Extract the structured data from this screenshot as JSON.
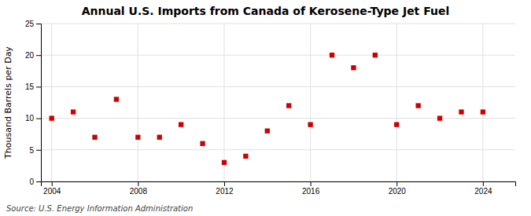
{
  "chart_data": {
    "type": "scatter",
    "title": "Annual U.S. Imports from Canada of Kerosene-Type Jet Fuel",
    "ylabel": "Thousand Barrels per Day",
    "source": "Source: U.S. Energy Information Administration",
    "x": [
      2004,
      2005,
      2006,
      2007,
      2008,
      2009,
      2010,
      2011,
      2012,
      2013,
      2014,
      2015,
      2016,
      2017,
      2018,
      2019,
      2020,
      2021,
      2022,
      2023,
      2024
    ],
    "values": [
      10,
      11,
      7,
      13,
      7,
      7,
      9,
      6,
      3,
      4,
      8,
      12,
      9,
      20,
      18,
      20,
      9,
      12,
      10,
      11,
      11
    ],
    "color": "#cc0000",
    "marker": "square",
    "xlim": [
      2003.5,
      2025.5
    ],
    "ylim": [
      0,
      25
    ],
    "xticks": [
      2004,
      2008,
      2012,
      2016,
      2020,
      2024
    ],
    "yticks": [
      0,
      5,
      10,
      15,
      20,
      25
    ],
    "grid": true
  }
}
